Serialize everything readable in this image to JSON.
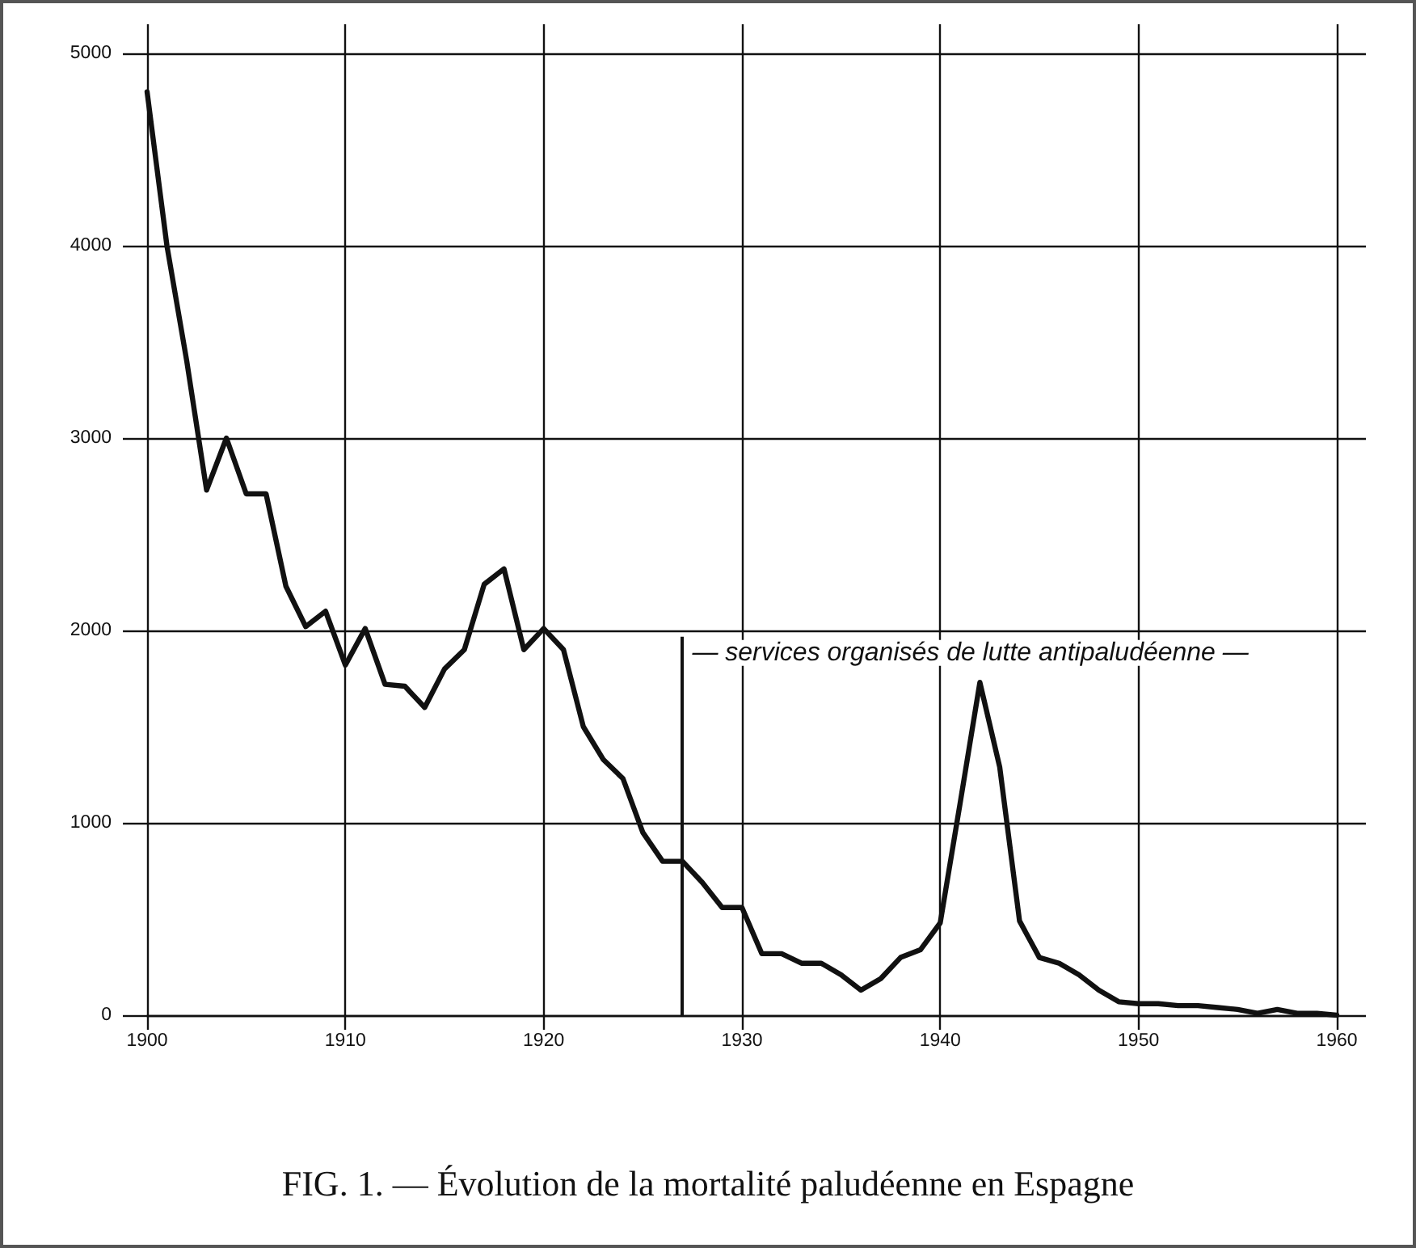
{
  "chart_data": {
    "type": "line",
    "title": "FIG. 1. — Évolution de la mortalité paludéenne en Espagne",
    "x": [
      1900,
      1901,
      1902,
      1903,
      1904,
      1905,
      1906,
      1907,
      1908,
      1909,
      1910,
      1911,
      1912,
      1913,
      1914,
      1915,
      1916,
      1917,
      1918,
      1919,
      1920,
      1921,
      1922,
      1923,
      1924,
      1925,
      1926,
      1927,
      1928,
      1929,
      1930,
      1931,
      1932,
      1933,
      1934,
      1935,
      1936,
      1937,
      1938,
      1939,
      1940,
      1941,
      1942,
      1943,
      1944,
      1945,
      1946,
      1947,
      1948,
      1949,
      1950,
      1951,
      1952,
      1953,
      1954,
      1955,
      1956,
      1957,
      1958,
      1959,
      1960
    ],
    "values": [
      4800,
      4000,
      3400,
      2730,
      3000,
      2710,
      2710,
      2230,
      2020,
      2100,
      1820,
      2010,
      1720,
      1710,
      1600,
      1800,
      1900,
      2240,
      2320,
      1900,
      2010,
      1900,
      1500,
      1330,
      1230,
      950,
      800,
      800,
      690,
      560,
      560,
      320,
      320,
      270,
      270,
      210,
      130,
      190,
      300,
      340,
      480,
      1100,
      1730,
      1290,
      490,
      300,
      270,
      210,
      130,
      70,
      60,
      60,
      50,
      50,
      40,
      30,
      10,
      30,
      10,
      10,
      0
    ],
    "color": "#111111",
    "xlim": [
      1900,
      1960
    ],
    "ylim": [
      0,
      5000
    ],
    "xticks": [
      1900,
      1910,
      1920,
      1930,
      1940,
      1950,
      1960
    ],
    "yticks": [
      0,
      1000,
      2000,
      3000,
      4000,
      5000
    ],
    "grid": true,
    "ref_lines": [
      {
        "axis": "x",
        "value": 1927,
        "label": "— services organisés de lutte antipaludéenne —"
      }
    ]
  }
}
